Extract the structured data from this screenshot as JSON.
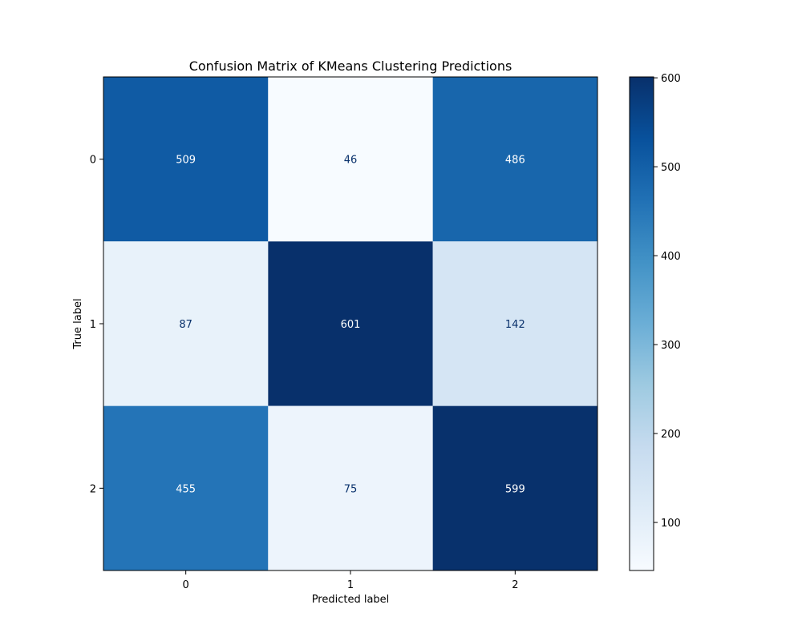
{
  "chart_data": {
    "type": "heatmap",
    "title": "Confusion Matrix of KMeans Clustering Predictions",
    "xlabel": "Predicted label",
    "ylabel": "True label",
    "x_categories": [
      "0",
      "1",
      "2"
    ],
    "y_categories": [
      "0",
      "1",
      "2"
    ],
    "values": [
      [
        509,
        46,
        486
      ],
      [
        87,
        601,
        142
      ],
      [
        455,
        75,
        599
      ]
    ],
    "colormap": "Blues",
    "color_range": [
      46,
      601
    ],
    "colorbar_ticks": [
      100,
      200,
      300,
      400,
      500,
      600
    ],
    "colors": {
      "cmap_low": "#f7fbff",
      "cmap_high": "#08306b",
      "text_light": "#ffffff",
      "text_dark": "#08306b"
    }
  }
}
